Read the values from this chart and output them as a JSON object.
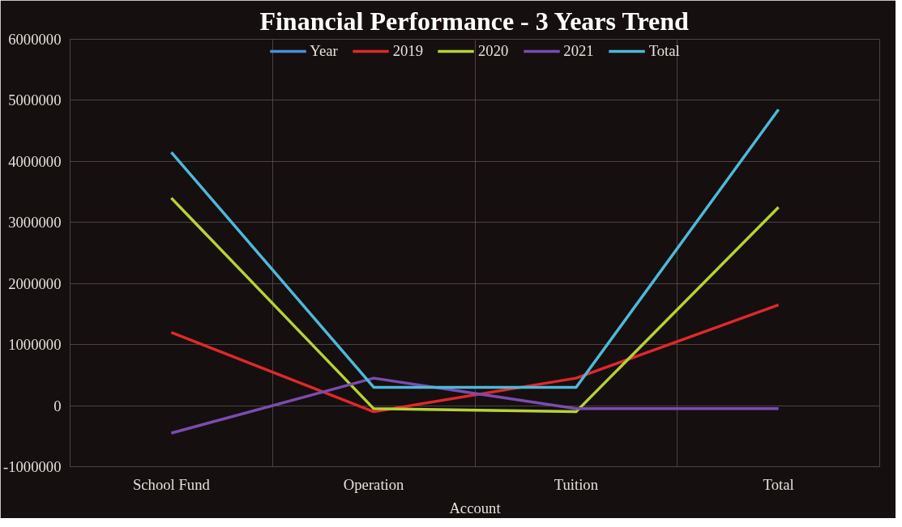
{
  "chart_data": {
    "type": "line",
    "title": "Financial Performance - 3 Years Trend",
    "xlabel": "Account",
    "categories": [
      "School Fund",
      "Operation",
      "Tuition",
      "Total"
    ],
    "series": [
      {
        "name": "Year",
        "color": "#4a8fd8",
        "values": [
          null,
          null,
          null,
          null
        ]
      },
      {
        "name": "2019",
        "color": "#e0282a",
        "values": [
          1200000,
          -100000,
          450000,
          1650000
        ]
      },
      {
        "name": "2020",
        "color": "#b5d334",
        "values": [
          3400000,
          -50000,
          -100000,
          3250000
        ]
      },
      {
        "name": "2021",
        "color": "#7a4cb0",
        "values": [
          -450000,
          450000,
          -50000,
          -50000
        ]
      },
      {
        "name": "Total",
        "color": "#4fb8d8",
        "values": [
          4150000,
          300000,
          300000,
          4850000
        ]
      }
    ],
    "ylim": [
      -1000000,
      6000000
    ],
    "yticks": [
      -1000000,
      0,
      1000000,
      2000000,
      3000000,
      4000000,
      5000000,
      6000000
    ],
    "grid": true,
    "legend": "top",
    "marker": "none",
    "line_style": "solid"
  }
}
